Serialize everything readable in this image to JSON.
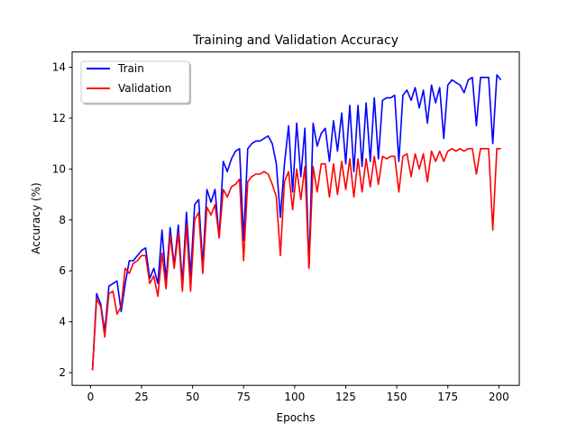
{
  "chart_data": {
    "type": "line",
    "title": "Training and Validation Accuracy",
    "xlabel": "Epochs",
    "ylabel": "Accuracy (%)",
    "xlim": [
      -9,
      210
    ],
    "ylim": [
      1.5,
      14.6
    ],
    "xticks": [
      0,
      25,
      50,
      75,
      100,
      125,
      150,
      175,
      200
    ],
    "yticks": [
      2,
      4,
      6,
      8,
      10,
      12,
      14
    ],
    "grid": false,
    "legend_position": "top-left",
    "series": [
      {
        "name": "Train",
        "color": "#0000ff",
        "x": [
          1,
          3,
          5,
          7,
          9,
          11,
          13,
          15,
          17,
          19,
          21,
          23,
          25,
          27,
          29,
          31,
          33,
          35,
          37,
          39,
          41,
          43,
          45,
          47,
          49,
          51,
          53,
          55,
          57,
          59,
          61,
          63,
          65,
          67,
          69,
          71,
          73,
          75,
          77,
          79,
          81,
          83,
          85,
          87,
          89,
          91,
          93,
          95,
          97,
          99,
          101,
          103,
          105,
          107,
          109,
          111,
          113,
          115,
          117,
          119,
          121,
          123,
          125,
          127,
          129,
          131,
          133,
          135,
          137,
          139,
          141,
          143,
          145,
          147,
          149,
          151,
          153,
          155,
          157,
          159,
          161,
          163,
          165,
          167,
          169,
          171,
          173,
          175,
          177,
          179,
          181,
          183,
          185,
          187,
          189,
          191,
          193,
          195,
          197,
          199,
          201
        ],
        "y": [
          2.1,
          5.1,
          4.7,
          3.6,
          5.4,
          5.5,
          5.6,
          4.4,
          5.5,
          6.4,
          6.4,
          6.6,
          6.8,
          6.9,
          5.7,
          6.1,
          5.5,
          7.6,
          5.6,
          7.7,
          6.2,
          7.8,
          5.5,
          8.3,
          5.8,
          8.6,
          8.8,
          6.2,
          9.2,
          8.7,
          9.2,
          7.3,
          10.3,
          9.9,
          10.4,
          10.7,
          10.8,
          7.2,
          10.8,
          11.0,
          11.1,
          11.1,
          11.2,
          11.3,
          11.0,
          10.2,
          8.1,
          10.2,
          11.7,
          9.1,
          11.8,
          9.7,
          11.6,
          6.1,
          11.8,
          10.9,
          11.4,
          11.6,
          10.3,
          11.9,
          10.7,
          12.2,
          10.2,
          12.5,
          9.9,
          12.5,
          10.1,
          12.6,
          10.3,
          12.8,
          10.4,
          12.7,
          12.8,
          12.8,
          12.9,
          10.3,
          12.9,
          13.1,
          12.7,
          13.2,
          12.4,
          13.1,
          11.8,
          13.3,
          12.6,
          13.2,
          11.2,
          13.3,
          13.5,
          13.4,
          13.3,
          13.0,
          13.5,
          13.6,
          11.7,
          13.6,
          13.6,
          13.6,
          11.0,
          13.7,
          13.5
        ]
      },
      {
        "name": "Validation",
        "color": "#ff0000",
        "x": [
          1,
          3,
          5,
          7,
          9,
          11,
          13,
          15,
          17,
          19,
          21,
          23,
          25,
          27,
          29,
          31,
          33,
          35,
          37,
          39,
          41,
          43,
          45,
          47,
          49,
          51,
          53,
          55,
          57,
          59,
          61,
          63,
          65,
          67,
          69,
          71,
          73,
          75,
          77,
          79,
          81,
          83,
          85,
          87,
          89,
          91,
          93,
          95,
          97,
          99,
          101,
          103,
          105,
          107,
          109,
          111,
          113,
          115,
          117,
          119,
          121,
          123,
          125,
          127,
          129,
          131,
          133,
          135,
          137,
          139,
          141,
          143,
          145,
          147,
          149,
          151,
          153,
          155,
          157,
          159,
          161,
          163,
          165,
          167,
          169,
          171,
          173,
          175,
          177,
          179,
          181,
          183,
          185,
          187,
          189,
          191,
          193,
          195,
          197,
          199,
          201
        ],
        "y": [
          2.1,
          4.9,
          4.6,
          3.4,
          5.1,
          5.2,
          4.3,
          4.6,
          6.1,
          5.9,
          6.3,
          6.4,
          6.6,
          6.6,
          5.5,
          5.8,
          5.0,
          6.7,
          5.3,
          7.4,
          6.1,
          7.5,
          5.2,
          7.8,
          5.2,
          8.0,
          8.3,
          5.9,
          8.5,
          8.2,
          8.6,
          7.3,
          9.2,
          8.9,
          9.3,
          9.4,
          9.6,
          6.4,
          9.5,
          9.7,
          9.8,
          9.8,
          9.9,
          9.8,
          9.4,
          8.9,
          6.6,
          9.5,
          9.9,
          8.4,
          10.0,
          8.8,
          10.1,
          6.1,
          10.1,
          9.1,
          10.2,
          10.2,
          8.9,
          10.2,
          9.0,
          10.3,
          9.2,
          10.4,
          8.9,
          10.4,
          9.1,
          10.4,
          9.3,
          10.5,
          9.4,
          10.5,
          10.4,
          10.5,
          10.5,
          9.1,
          10.5,
          10.6,
          9.7,
          10.6,
          10.0,
          10.6,
          9.5,
          10.7,
          10.3,
          10.7,
          10.3,
          10.7,
          10.8,
          10.7,
          10.8,
          10.7,
          10.8,
          10.8,
          9.8,
          10.8,
          10.8,
          10.8,
          7.6,
          10.8,
          10.8
        ]
      }
    ]
  }
}
